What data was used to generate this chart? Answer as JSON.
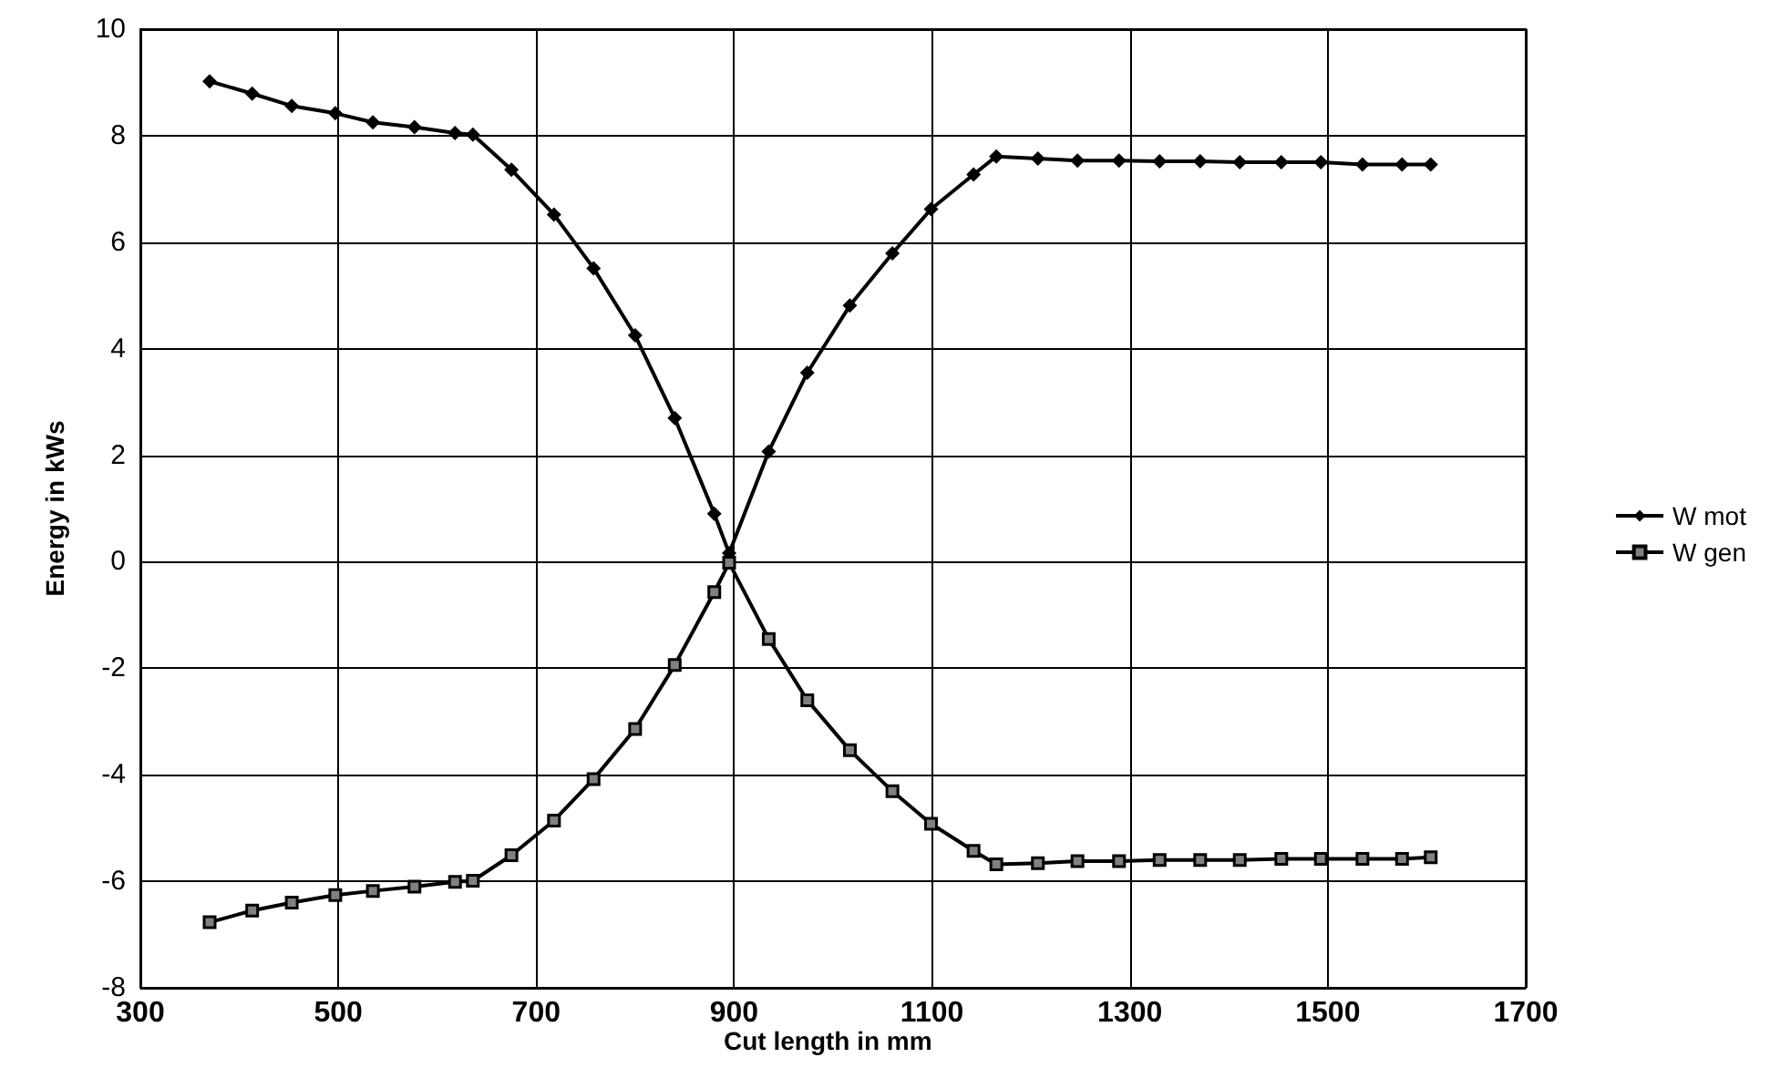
{
  "chart_data": {
    "type": "line",
    "xlabel": "Cut length in mm",
    "ylabel": "Energy in kWs",
    "x": [
      370,
      413,
      453,
      497,
      535,
      577,
      618,
      636,
      675,
      718,
      758,
      800,
      840,
      880,
      895,
      935,
      974,
      1017,
      1060,
      1099,
      1142,
      1165,
      1207,
      1247,
      1289,
      1330,
      1371,
      1411,
      1453,
      1493,
      1535,
      1575,
      1604
    ],
    "series": [
      {
        "name": "W mot",
        "color": "#000000",
        "marker": "diamond",
        "values": [
          9.02,
          8.79,
          8.56,
          8.42,
          8.25,
          8.16,
          8.05,
          8.02,
          7.36,
          6.52,
          5.51,
          4.25,
          2.7,
          0.9,
          0.16,
          2.07,
          3.55,
          4.81,
          5.79,
          6.62,
          7.27,
          7.61,
          7.57,
          7.53,
          7.53,
          7.52,
          7.52,
          7.5,
          7.5,
          7.5,
          7.46,
          7.46,
          7.46
        ]
      },
      {
        "name": "W gen",
        "color": "#000000",
        "marker": "square",
        "values": [
          -6.77,
          -6.55,
          -6.4,
          -6.26,
          -6.18,
          -6.1,
          -6.01,
          -5.99,
          -5.51,
          -4.86,
          -4.08,
          -3.14,
          -1.94,
          -0.57,
          -0.02,
          -1.45,
          -2.6,
          -3.54,
          -4.31,
          -4.92,
          -5.43,
          -5.68,
          -5.66,
          -5.62,
          -5.62,
          -5.6,
          -5.6,
          -5.6,
          -5.58,
          -5.58,
          -5.58,
          -5.58,
          -5.55
        ]
      }
    ],
    "xlim": [
      300,
      1700
    ],
    "xticks": [
      300,
      500,
      700,
      900,
      1100,
      1300,
      1500,
      1700
    ],
    "ylim": [
      -8,
      10
    ],
    "yticks": [
      -8,
      -6,
      -4,
      -2,
      0,
      2,
      4,
      6,
      8,
      10
    ],
    "grid": true,
    "legend": "right",
    "line_style": "solid"
  }
}
